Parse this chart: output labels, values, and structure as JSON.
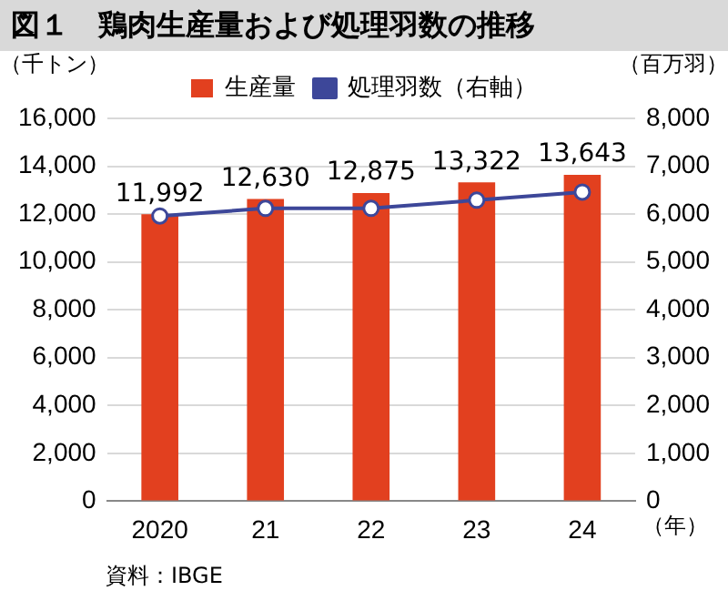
{
  "chart_data": {
    "type": "bar",
    "title": "図１　鶏肉生産量および処理羽数の推移",
    "ylabel": "（千トン）",
    "y2label": "（百万羽）",
    "xlabel": "（年）",
    "annotations": [
      "資料：IBGE"
    ],
    "categories": [
      "2020",
      "21",
      "22",
      "23",
      "24"
    ],
    "series": [
      {
        "name": "生産量",
        "color": "#e2401f",
        "values": [
          11992,
          12630,
          12875,
          13322,
          13643
        ],
        "value_labels": [
          "11,992",
          "12,630",
          "12,875",
          "13,322",
          "13,643"
        ]
      },
      {
        "name": "処理羽数（右軸）",
        "type": "line",
        "axis": "y2",
        "color": "#3d4799",
        "marker": "circle",
        "values": [
          5960,
          6120,
          6120,
          6290,
          6460
        ]
      }
    ],
    "ylim": [
      0,
      16000
    ],
    "yticks": [
      0,
      {
        "value": 2000,
        "label": "2,000"
      },
      {
        "value": 4000,
        "label": "4,000"
      },
      {
        "value": 6000,
        "label": "6,000"
      },
      {
        "value": 8000,
        "label": "8,000"
      },
      {
        "value": 10000,
        "label": "10,000"
      },
      {
        "value": 12000,
        "label": "12,000"
      },
      {
        "value": 14000,
        "label": "14,000"
      },
      {
        "value": 16000,
        "label": "16,000"
      }
    ],
    "y2lim": [
      0,
      8000
    ],
    "y2ticks": [
      0,
      {
        "value": 1000,
        "label": "1,000"
      },
      {
        "value": 2000,
        "label": "2,000"
      },
      {
        "value": 3000,
        "label": "3,000"
      },
      {
        "value": 4000,
        "label": "4,000"
      },
      {
        "value": 5000,
        "label": "5,000"
      },
      {
        "value": 6000,
        "label": "6,000"
      },
      {
        "value": 7000,
        "label": "7,000"
      },
      {
        "value": 8000,
        "label": "8,000"
      }
    ],
    "grid": "y",
    "legend": "top"
  }
}
